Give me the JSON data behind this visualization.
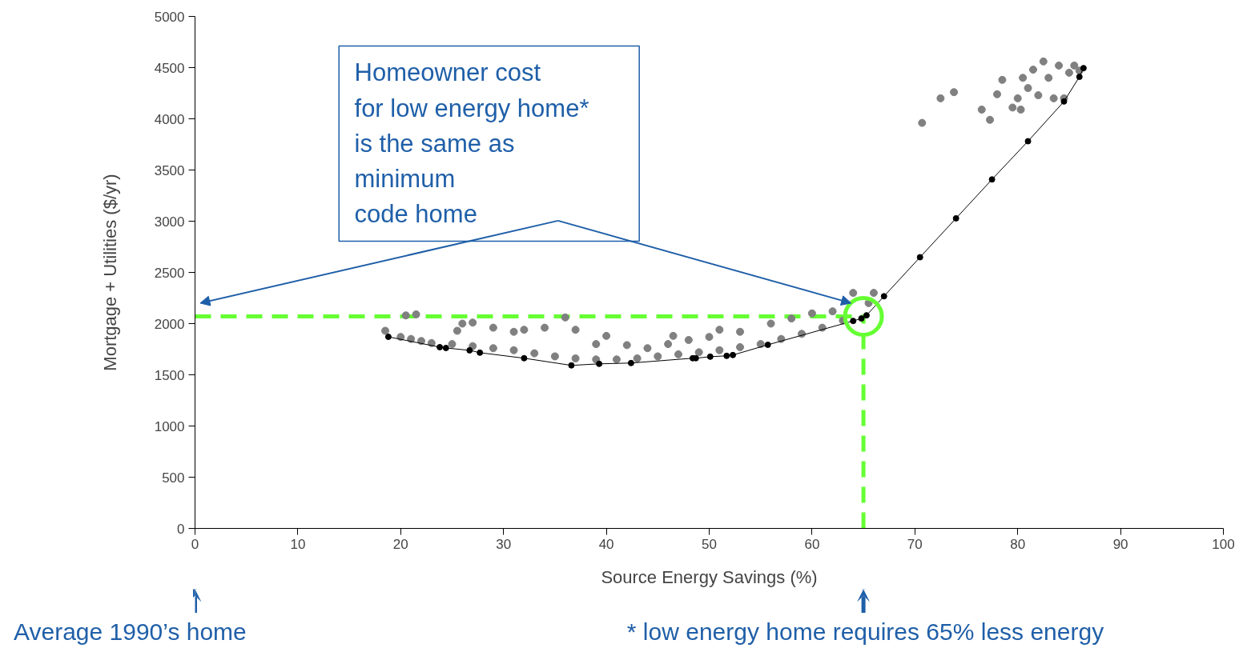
{
  "chart_data": {
    "type": "scatter",
    "xlabel": "Source Energy Savings (%)",
    "ylabel": "Mortgage + Utilities ($/yr)",
    "xlim": [
      0,
      100
    ],
    "xticks": [
      0,
      10,
      20,
      30,
      40,
      50,
      60,
      70,
      80,
      90,
      100
    ],
    "ylim": [
      0,
      5000
    ],
    "yticks": [
      0,
      500,
      1000,
      1500,
      2000,
      2500,
      3000,
      3500,
      4000,
      4500,
      5000
    ],
    "grid": false,
    "marker": "circle",
    "series": [
      {
        "color": "#808080",
        "x": [
          18.5,
          20,
          21,
          22,
          23,
          25,
          27,
          29,
          31,
          33,
          35,
          37,
          39,
          41,
          43,
          45,
          47,
          49,
          51,
          53,
          55,
          57,
          59,
          61,
          63,
          20.5,
          21.5,
          26,
          27,
          25.5,
          29,
          31,
          32,
          34,
          36,
          37,
          39,
          40,
          42,
          44,
          46,
          46.5,
          48,
          50,
          51,
          53,
          56,
          58,
          60,
          62,
          64,
          66,
          65.5,
          70.7,
          72.5,
          73.8,
          76.5,
          77.3,
          78,
          78.5,
          79.5,
          80,
          80.5,
          81,
          81.5,
          82,
          82.5,
          83,
          84,
          84.5,
          85,
          85.5,
          86,
          80.3,
          83.5
        ],
        "values": [
          1930,
          1870,
          1850,
          1830,
          1810,
          1800,
          1780,
          1760,
          1740,
          1710,
          1680,
          1660,
          1650,
          1650,
          1660,
          1680,
          1700,
          1720,
          1740,
          1770,
          1800,
          1850,
          1900,
          1960,
          2030,
          2080,
          2090,
          2000,
          2010,
          1930,
          1960,
          1920,
          1940,
          1960,
          2060,
          1940,
          1800,
          1880,
          1790,
          1760,
          1800,
          1880,
          1840,
          1870,
          1940,
          1920,
          2000,
          2050,
          2100,
          2120,
          2300,
          2300,
          2200,
          3960,
          4200,
          4260,
          4090,
          3990,
          4240,
          4380,
          4110,
          4200,
          4400,
          4300,
          4480,
          4230,
          4560,
          4400,
          4520,
          4200,
          4450,
          4520,
          4470,
          4090,
          4200
        ]
      },
      {
        "type": "line",
        "color": "#000000",
        "x": [
          18.8,
          23.8,
          24.4,
          26.7,
          27.7,
          32.0,
          36.6,
          39.3,
          42.4,
          48.4,
          48.7,
          50.1,
          51.7,
          52.3,
          55.7,
          64.0,
          64.8,
          65.3,
          67.0,
          70.5,
          74.0,
          77.5,
          81.0,
          84.5,
          86.0,
          86.4
        ],
        "values": [
          1871,
          1770,
          1762,
          1739,
          1716,
          1662,
          1592,
          1607,
          1615,
          1662,
          1662,
          1677,
          1685,
          1693,
          1793,
          2026,
          2050,
          2081,
          2267,
          2648,
          3028,
          3408,
          3781,
          4169,
          4410,
          4495
        ]
      }
    ],
    "ref_lines": [
      {
        "axis": "x",
        "value": 65,
        "color": "#66ff33",
        "line_style": "dashed"
      },
      {
        "axis": "y",
        "value": 2070,
        "color": "#66ff33",
        "line_style": "dashed"
      }
    ],
    "annotations": [
      "Homeowner cost\nfor low energy home*\nis the same as\nminimum\ncode home",
      "Average 1990’s home",
      "* low energy home requires 65% less energy"
    ]
  }
}
